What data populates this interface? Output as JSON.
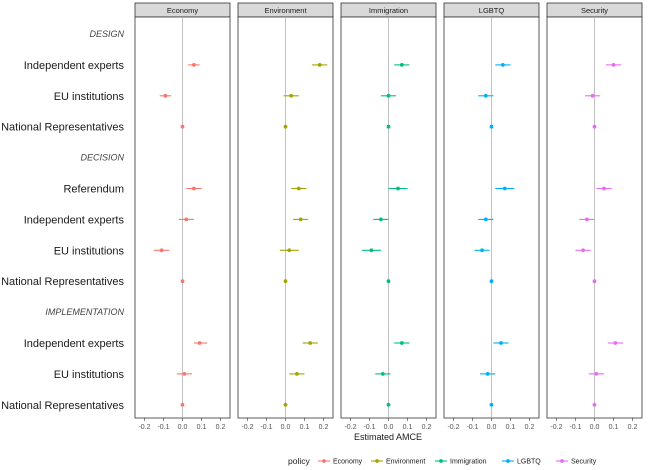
{
  "chart_data": {
    "type": "scatter",
    "subtype": "coefficient-plot-faceted",
    "xlabel": "Estimated AMCE",
    "xlim": [
      -0.25,
      0.25
    ],
    "xticks": [
      -0.2,
      -0.1,
      0.0,
      0.1,
      0.2
    ],
    "xtick_labels": [
      "-0.2",
      "-0.1",
      "0.0",
      "0.1",
      "0.2"
    ],
    "legend_title": "policy",
    "legend_position": "bottom",
    "facets": [
      {
        "name": "Economy",
        "color": "#F8766D"
      },
      {
        "name": "Environment",
        "color": "#A3A500"
      },
      {
        "name": "Immigration",
        "color": "#00BF7D"
      },
      {
        "name": "LGBTQ",
        "color": "#00B0F6"
      },
      {
        "name": "Security",
        "color": "#E76BF3"
      }
    ],
    "rows": [
      {
        "label": "DESIGN",
        "kind": "section"
      },
      {
        "label": "Independent experts",
        "kind": "term"
      },
      {
        "label": "EU institutions",
        "kind": "term"
      },
      {
        "label": "National Representatives",
        "kind": "term"
      },
      {
        "label": "DECISION",
        "kind": "section"
      },
      {
        "label": "Referendum",
        "kind": "term"
      },
      {
        "label": "Independent experts",
        "kind": "term"
      },
      {
        "label": "EU institutions",
        "kind": "term"
      },
      {
        "label": "National Representatives",
        "kind": "term"
      },
      {
        "label": "IMPLEMENTATION",
        "kind": "section"
      },
      {
        "label": "Independent experts",
        "kind": "term"
      },
      {
        "label": "EU institutions",
        "kind": "term"
      },
      {
        "label": "National Representatives",
        "kind": "term"
      }
    ],
    "series": [
      {
        "name": "Economy",
        "values": [
          null,
          0.06,
          -0.09,
          0.0,
          null,
          0.06,
          0.02,
          -0.11,
          0.0,
          null,
          0.09,
          0.01,
          0.0
        ],
        "lo": [
          null,
          0.03,
          -0.12,
          0.0,
          null,
          0.02,
          -0.02,
          -0.15,
          0.0,
          null,
          0.06,
          -0.03,
          0.0
        ],
        "hi": [
          null,
          0.09,
          -0.06,
          0.0,
          null,
          0.1,
          0.06,
          -0.07,
          0.0,
          null,
          0.13,
          0.05,
          0.0
        ]
      },
      {
        "name": "Environment",
        "values": [
          null,
          0.18,
          0.03,
          0.0,
          null,
          0.07,
          0.08,
          0.02,
          0.0,
          null,
          0.13,
          0.06,
          0.0
        ],
        "lo": [
          null,
          0.14,
          -0.01,
          0.0,
          null,
          0.03,
          0.04,
          -0.03,
          0.0,
          null,
          0.09,
          0.02,
          0.0
        ],
        "hi": [
          null,
          0.22,
          0.07,
          0.0,
          null,
          0.11,
          0.12,
          0.07,
          0.0,
          null,
          0.17,
          0.1,
          0.0
        ]
      },
      {
        "name": "Immigration",
        "values": [
          null,
          0.07,
          0.0,
          0.0,
          null,
          0.05,
          -0.04,
          -0.09,
          0.0,
          null,
          0.07,
          -0.03,
          0.0
        ],
        "lo": [
          null,
          0.03,
          -0.04,
          0.0,
          null,
          0.0,
          -0.08,
          -0.14,
          0.0,
          null,
          0.03,
          -0.07,
          0.0
        ],
        "hi": [
          null,
          0.11,
          0.04,
          0.0,
          null,
          0.1,
          0.0,
          -0.04,
          0.0,
          null,
          0.11,
          0.01,
          0.0
        ]
      },
      {
        "name": "LGBTQ",
        "values": [
          null,
          0.06,
          -0.03,
          0.0,
          null,
          0.07,
          -0.03,
          -0.05,
          0.0,
          null,
          0.05,
          -0.02,
          0.0
        ],
        "lo": [
          null,
          0.02,
          -0.07,
          0.0,
          null,
          0.02,
          -0.07,
          -0.09,
          0.0,
          null,
          0.01,
          -0.06,
          0.0
        ],
        "hi": [
          null,
          0.1,
          0.01,
          0.0,
          null,
          0.12,
          0.01,
          -0.01,
          0.0,
          null,
          0.09,
          0.02,
          0.0
        ]
      },
      {
        "name": "Security",
        "values": [
          null,
          0.1,
          -0.01,
          0.0,
          null,
          0.05,
          -0.04,
          -0.06,
          0.0,
          null,
          0.11,
          0.01,
          0.0
        ],
        "lo": [
          null,
          0.06,
          -0.05,
          0.0,
          null,
          0.01,
          -0.08,
          -0.1,
          0.0,
          null,
          0.07,
          -0.03,
          0.0
        ],
        "hi": [
          null,
          0.14,
          0.03,
          0.0,
          null,
          0.09,
          0.0,
          -0.02,
          0.0,
          null,
          0.15,
          0.05,
          0.0
        ]
      }
    ]
  }
}
